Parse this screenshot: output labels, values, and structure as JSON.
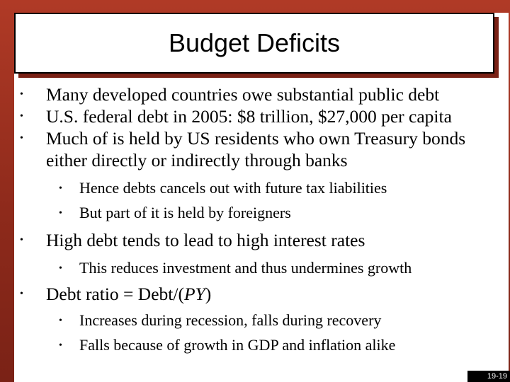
{
  "title": "Budget Deficits",
  "bullets": [
    "Many developed countries owe substantial public debt",
    "U.S. federal debt in 2005: $8 trillion, $27,000 per capita",
    "Much of is held by US residents who own Treasury bonds",
    "either directly or indirectly through banks",
    "Hence debts cancels out with future tax liabilities",
    "But part of it is held by foreigners",
    "High debt tends to lead to high interest rates",
    "This reduces investment and thus undermines growth",
    "Debt ratio = Debt/(",
    "PY",
    ")",
    "Increases during recession, falls during recovery",
    "Falls because of growth in GDP and inflation alike"
  ],
  "page_number": "19-19"
}
